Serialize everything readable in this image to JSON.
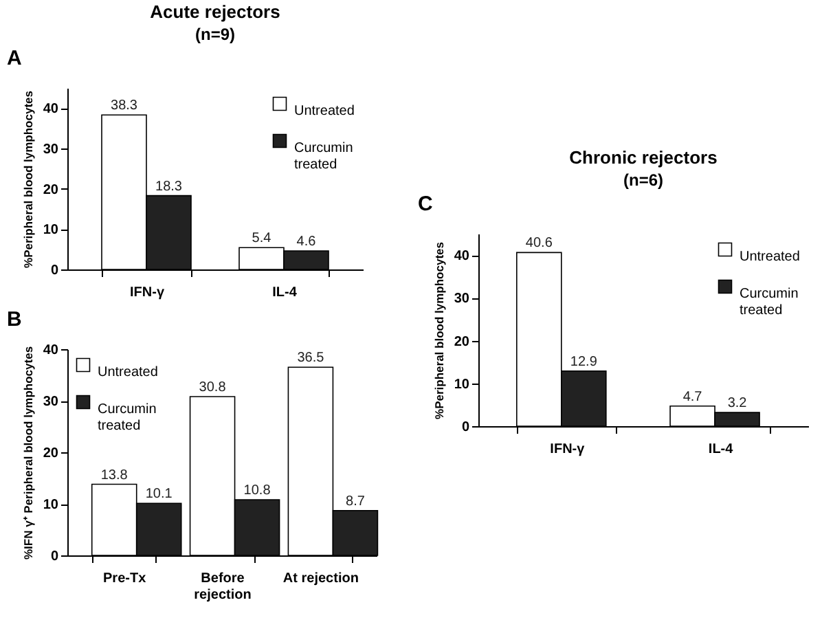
{
  "chart_data": [
    {
      "type": "bar",
      "title": "Acute rejectors",
      "subtitle": "(n=9)",
      "annotations": [
        "A"
      ],
      "ylabel": "%Peripheral blood lymphocytes",
      "categories": [
        "IFN-γ",
        "IL-4"
      ],
      "series": [
        {
          "name": "Untreated",
          "color": "#ffffff",
          "values": [
            38.3,
            5.4
          ]
        },
        {
          "name": "Curcumin treated",
          "color": "#222222",
          "values": [
            18.3,
            4.6
          ]
        }
      ],
      "ylim": [
        0,
        45
      ],
      "yticks": [
        0,
        10,
        20,
        30,
        40
      ],
      "data_labels": true,
      "legend": "top right"
    },
    {
      "type": "bar",
      "annotations": [
        "B"
      ],
      "ylabel": "%IFN γ⁺ Peripheral blood lymphocytes",
      "categories": [
        "Pre-Tx",
        "Before rejection",
        "At rejection"
      ],
      "series": [
        {
          "name": "Untreated",
          "color": "#ffffff",
          "values": [
            13.8,
            30.8,
            36.5
          ]
        },
        {
          "name": "Curcumin treated",
          "color": "#222222",
          "values": [
            10.1,
            10.8,
            8.7
          ]
        }
      ],
      "ylim": [
        0,
        40
      ],
      "yticks": [
        0,
        10,
        20,
        30,
        40
      ],
      "data_labels": true,
      "legend": "top left"
    },
    {
      "type": "bar",
      "title": "Chronic rejectors",
      "subtitle": "(n=6)",
      "annotations": [
        "C"
      ],
      "ylabel": "%Peripheral blood lymphocytes",
      "categories": [
        "IFN-γ",
        "IL-4"
      ],
      "series": [
        {
          "name": "Untreated",
          "color": "#ffffff",
          "values": [
            40.6,
            4.7
          ]
        },
        {
          "name": "Curcumin treated",
          "color": "#222222",
          "values": [
            12.9,
            3.2
          ]
        }
      ],
      "ylim": [
        0,
        45
      ],
      "yticks": [
        0,
        10,
        20,
        30,
        40
      ],
      "data_labels": true,
      "legend": "top right"
    }
  ]
}
